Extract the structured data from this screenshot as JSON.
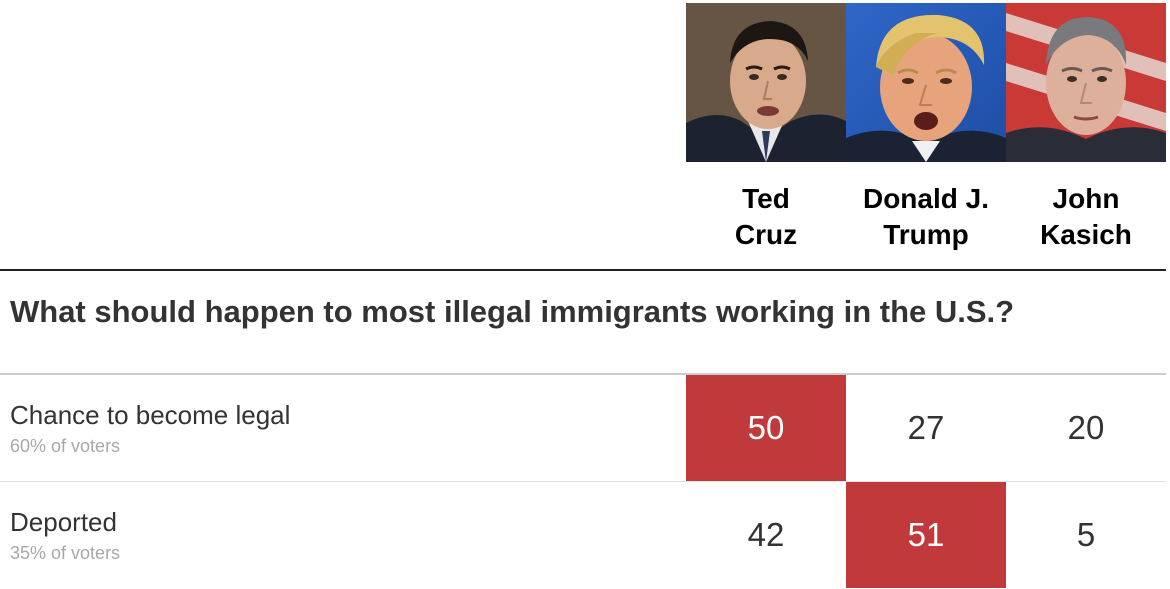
{
  "colors": {
    "winner_fill": "#c0393b",
    "text": "#333333",
    "muted_text": "#a8a8a8"
  },
  "candidates": [
    {
      "first": "Ted",
      "last": "Cruz",
      "portrait_icon": "ted-cruz-portrait"
    },
    {
      "first": "Donald J.",
      "last": "Trump",
      "portrait_icon": "donald-trump-portrait"
    },
    {
      "first": "John",
      "last": "Kasich",
      "portrait_icon": "john-kasich-portrait"
    }
  ],
  "question": "What should happen to most illegal immigrants working in the U.S.?",
  "chart_data": {
    "type": "table",
    "title": "What should happen to most illegal immigrants working in the U.S.?",
    "columns": [
      "Ted Cruz",
      "Donald J. Trump",
      "John Kasich"
    ],
    "rows": [
      {
        "label": "Chance to become legal",
        "share": "60% of voters",
        "values": [
          50,
          27,
          20
        ],
        "highlight": 0
      },
      {
        "label": "Deported",
        "share": "35% of voters",
        "values": [
          42,
          51,
          5
        ],
        "highlight": 1
      }
    ]
  }
}
